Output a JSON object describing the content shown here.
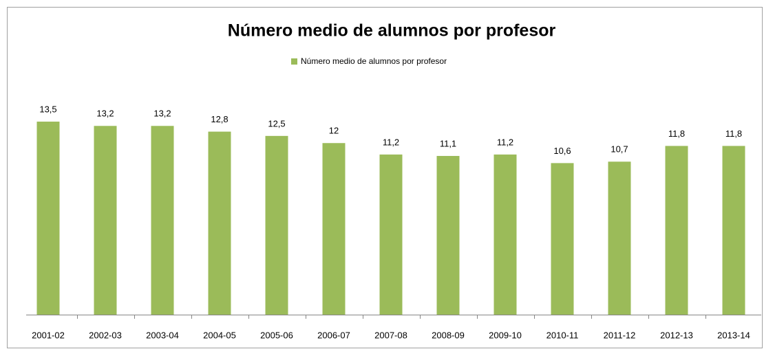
{
  "chart_data": {
    "type": "bar",
    "title": "Número medio de alumnos por profesor",
    "legend": "Número medio de alumnos por profesor",
    "categories": [
      "2001-02",
      "2002-03",
      "2003-04",
      "2004-05",
      "2005-06",
      "2006-07",
      "2007-08",
      "2008-09",
      "2009-10",
      "2010-11",
      "2011-12",
      "2012-13",
      "2013-14"
    ],
    "values": [
      13.5,
      13.2,
      13.2,
      12.8,
      12.5,
      12,
      11.2,
      11.1,
      11.2,
      10.6,
      10.7,
      11.8,
      11.8
    ],
    "value_labels": [
      "13,5",
      "13,2",
      "13,2",
      "12,8",
      "12,5",
      "12",
      "11,2",
      "11,1",
      "11,2",
      "10,6",
      "10,7",
      "11,8",
      "11,8"
    ],
    "color": "#9bbb59",
    "ylim": [
      0,
      16
    ]
  }
}
